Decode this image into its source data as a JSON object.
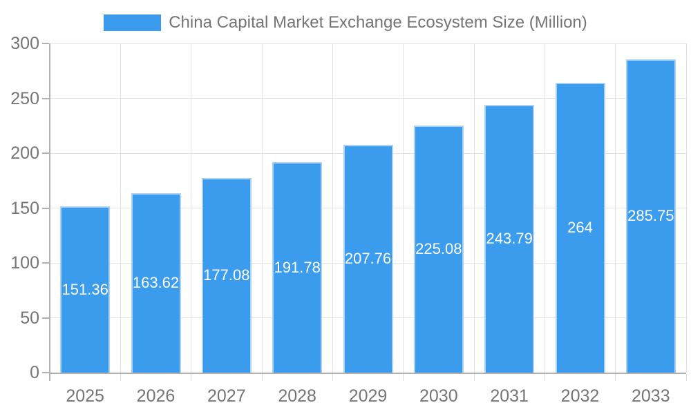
{
  "chart_data": {
    "type": "bar",
    "title": "China Capital Market Exchange Ecosystem Size (Million)",
    "categories": [
      "2025",
      "2026",
      "2027",
      "2028",
      "2029",
      "2030",
      "2031",
      "2032",
      "2033"
    ],
    "series": [
      {
        "name": "China Capital Market Exchange Ecosystem Size (Million)",
        "values": [
          151.36,
          163.62,
          177.08,
          191.78,
          207.76,
          225.08,
          243.79,
          264,
          285.75
        ]
      }
    ],
    "value_labels": [
      "151.36",
      "163.62",
      "177.08",
      "191.78",
      "207.76",
      "225.08",
      "243.79",
      "264",
      "285.75"
    ],
    "xlabel": "",
    "ylabel": "",
    "ylim": [
      0,
      300
    ],
    "yticks": [
      0,
      50,
      100,
      150,
      200,
      250,
      300
    ],
    "grid": true,
    "legend_position": "top-center",
    "colors": {
      "bar_fill": "#3b9cee",
      "bar_border": "#a9d2f4",
      "value_label": "#ffffff",
      "axis_text": "#757575",
      "axis_line": "#b0b0b0",
      "gridline": "#e3e3e3",
      "tick": "#d9d9d9",
      "background": "#ffffff"
    }
  }
}
